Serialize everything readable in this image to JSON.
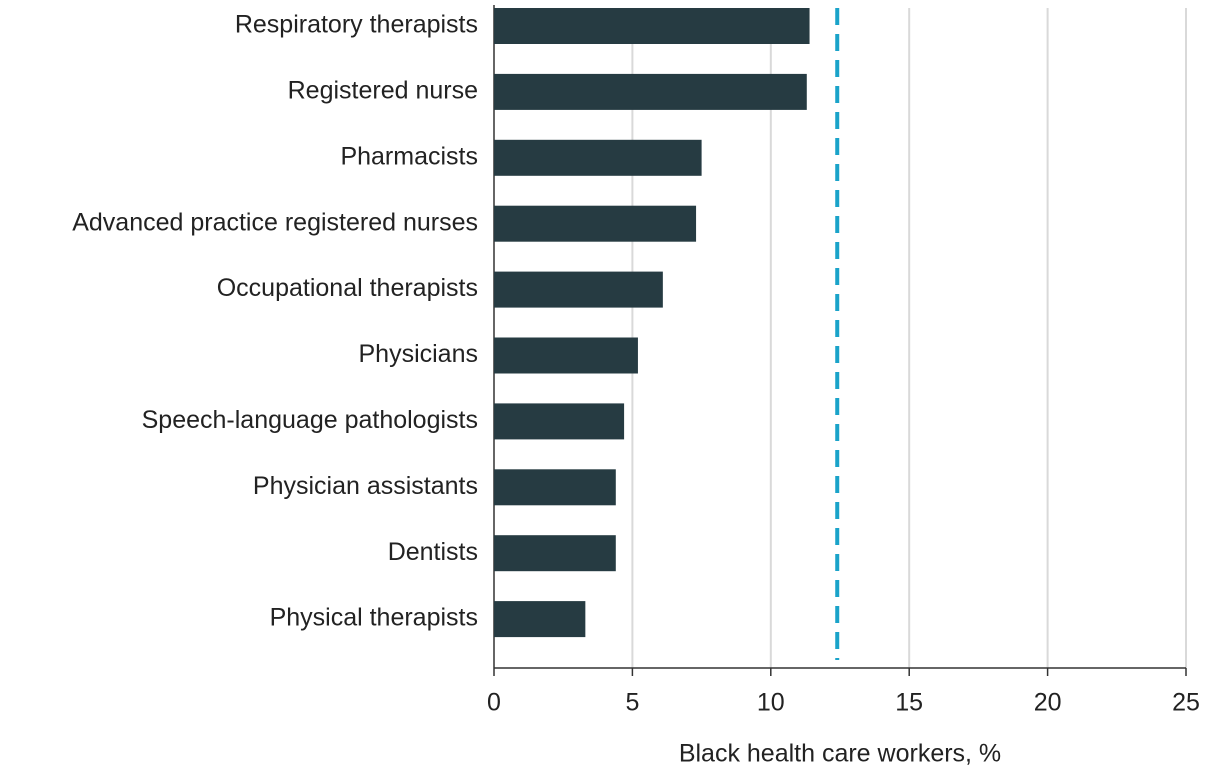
{
  "chart_data": {
    "type": "barh",
    "x_label": "Black health care workers, %",
    "categories": [
      "Respiratory therapists",
      "Registered nurse",
      "Pharmacists",
      "Advanced practice registered nurses",
      "Occupational therapists",
      "Physicians",
      "Speech-language pathologists",
      "Physician assistants",
      "Dentists",
      "Physical therapists"
    ],
    "values": [
      11.4,
      11.3,
      7.5,
      7.3,
      6.1,
      5.2,
      4.7,
      4.4,
      4.4,
      3.3
    ],
    "color": "#263b42",
    "reference_line": 12.4,
    "reference_color": "#1aa3c9",
    "xlim": [
      0,
      25
    ],
    "xticks": [
      0,
      5,
      10,
      15,
      20,
      25
    ],
    "grid": true
  }
}
